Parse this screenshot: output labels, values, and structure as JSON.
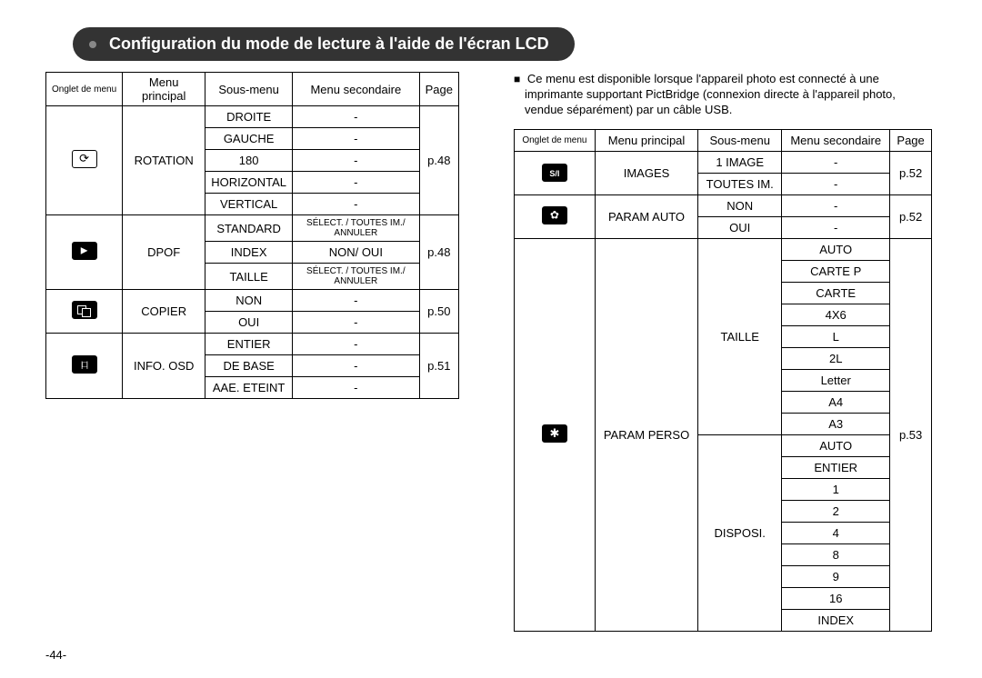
{
  "title": "Configuration du mode de lecture à l'aide de l'écran LCD",
  "pageNumber": "-44-",
  "headers": {
    "onglet": "Onglet de menu",
    "principal": "Menu principal",
    "sous": "Sous-menu",
    "secondaire": "Menu secondaire",
    "page": "Page"
  },
  "leftTable": {
    "groups": [
      {
        "icon": "rotate",
        "principal": "ROTATION",
        "page": "p.48",
        "rows": [
          {
            "sous": "DROITE",
            "sec": "-"
          },
          {
            "sous": "GAUCHE",
            "sec": "-"
          },
          {
            "sous": "180",
            "sec": "-"
          },
          {
            "sous": "HORIZONTAL",
            "sec": "-"
          },
          {
            "sous": "VERTICAL",
            "sec": "-"
          }
        ]
      },
      {
        "icon": "dpof",
        "principal": "DPOF",
        "page": "p.48",
        "rows": [
          {
            "sous": "STANDARD",
            "sec": "SÉLECT. / TOUTES IM./ ANNULER",
            "secSmall": true
          },
          {
            "sous": "INDEX",
            "sec": "NON/ OUI"
          },
          {
            "sous": "TAILLE",
            "sec": "SÉLECT. / TOUTES IM./ ANNULER",
            "secSmall": true
          }
        ]
      },
      {
        "icon": "copy",
        "principal": "COPIER",
        "page": "p.50",
        "rows": [
          {
            "sous": "NON",
            "sec": "-"
          },
          {
            "sous": "OUI",
            "sec": "-"
          }
        ]
      },
      {
        "icon": "info",
        "principal": "INFO. OSD",
        "page": "p.51",
        "rows": [
          {
            "sous": "ENTIER",
            "sec": "-"
          },
          {
            "sous": "DE BASE",
            "sec": "-"
          },
          {
            "sous": "AAE. ETEINT",
            "sec": "-"
          }
        ]
      }
    ]
  },
  "note": "Ce menu est disponible lorsque l'appareil photo est connecté à une imprimante supportant PictBridge (connexion directe à l'appareil photo, vendue séparément) par un câble USB.",
  "rightTable": {
    "groups": [
      {
        "icon": "si",
        "iconText": "S/I",
        "principal": "IMAGES",
        "page": "p.52",
        "rows": [
          {
            "sous": "1 IMAGE",
            "sec": "-"
          },
          {
            "sous": "TOUTES IM.",
            "sec": "-"
          }
        ]
      },
      {
        "icon": "auto",
        "principal": "PARAM AUTO",
        "page": "p.52",
        "rows": [
          {
            "sous": "NON",
            "sec": "-"
          },
          {
            "sous": "OUI",
            "sec": "-"
          }
        ]
      },
      {
        "icon": "custom",
        "principal": "PARAM PERSO",
        "page": "p.53",
        "subgroups": [
          {
            "sous": "TAILLE",
            "secs": [
              "AUTO",
              "CARTE P",
              "CARTE",
              "4X6",
              "L",
              "2L",
              "Letter",
              "A4",
              "A3"
            ]
          },
          {
            "sous": "DISPOSI.",
            "secs": [
              "AUTO",
              "ENTIER",
              "1",
              "2",
              "4",
              "8",
              "9",
              "16",
              "INDEX"
            ]
          }
        ]
      }
    ]
  }
}
